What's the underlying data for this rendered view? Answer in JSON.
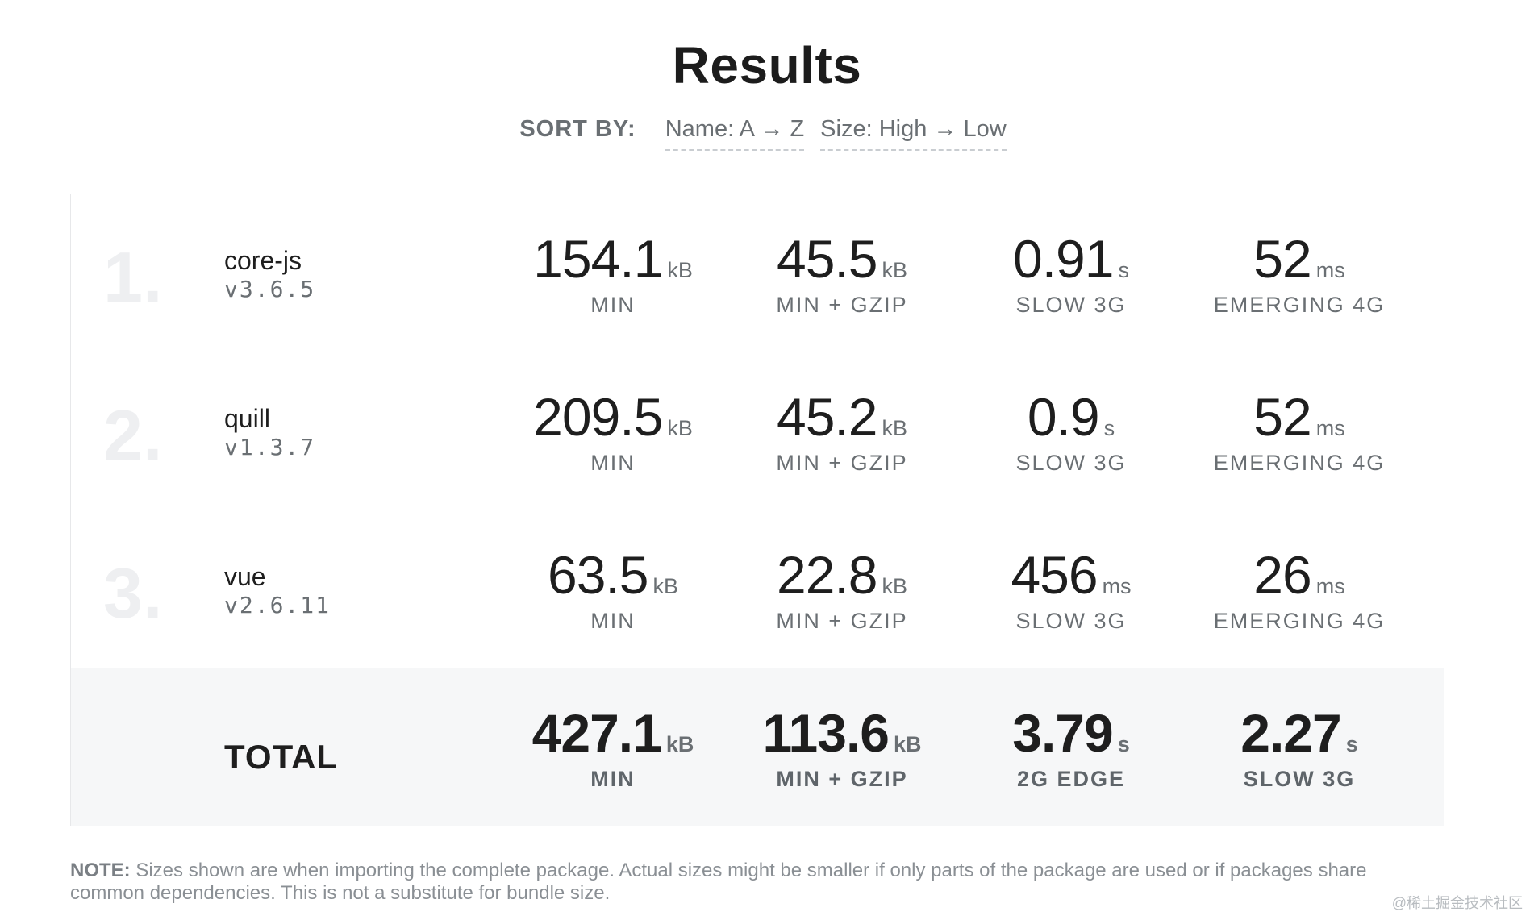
{
  "header": {
    "title": "Results"
  },
  "sort": {
    "label": "SORT BY:",
    "options": [
      "Name: A → Z",
      "Size: High → Low"
    ]
  },
  "packages": [
    {
      "rank": "1.",
      "name": "core-js",
      "version": "v3.6.5",
      "stats": [
        {
          "value": "154.1",
          "unit": "kB",
          "caption": "MIN"
        },
        {
          "value": "45.5",
          "unit": "kB",
          "caption": "MIN + GZIP"
        },
        {
          "value": "0.91",
          "unit": "s",
          "caption": "SLOW 3G"
        },
        {
          "value": "52",
          "unit": "ms",
          "caption": "EMERGING 4G"
        }
      ]
    },
    {
      "rank": "2.",
      "name": "quill",
      "version": "v1.3.7",
      "stats": [
        {
          "value": "209.5",
          "unit": "kB",
          "caption": "MIN"
        },
        {
          "value": "45.2",
          "unit": "kB",
          "caption": "MIN + GZIP"
        },
        {
          "value": "0.9",
          "unit": "s",
          "caption": "SLOW 3G"
        },
        {
          "value": "52",
          "unit": "ms",
          "caption": "EMERGING 4G"
        }
      ]
    },
    {
      "rank": "3.",
      "name": "vue",
      "version": "v2.6.11",
      "stats": [
        {
          "value": "63.5",
          "unit": "kB",
          "caption": "MIN"
        },
        {
          "value": "22.8",
          "unit": "kB",
          "caption": "MIN + GZIP"
        },
        {
          "value": "456",
          "unit": "ms",
          "caption": "SLOW 3G"
        },
        {
          "value": "26",
          "unit": "ms",
          "caption": "EMERGING 4G"
        }
      ]
    }
  ],
  "total": {
    "label": "TOTAL",
    "stats": [
      {
        "value": "427.1",
        "unit": "kB",
        "caption": "MIN"
      },
      {
        "value": "113.6",
        "unit": "kB",
        "caption": "MIN + GZIP"
      },
      {
        "value": "3.79",
        "unit": "s",
        "caption": "2G EDGE"
      },
      {
        "value": "2.27",
        "unit": "s",
        "caption": "SLOW 3G"
      }
    ]
  },
  "note": {
    "label": "NOTE:",
    "text": " Sizes shown are when importing the complete package. Actual sizes might be smaller if only parts of the package are used or if packages share common dependencies. This is not a substitute for bundle size."
  },
  "watermark": "@稀土掘金技术社区"
}
